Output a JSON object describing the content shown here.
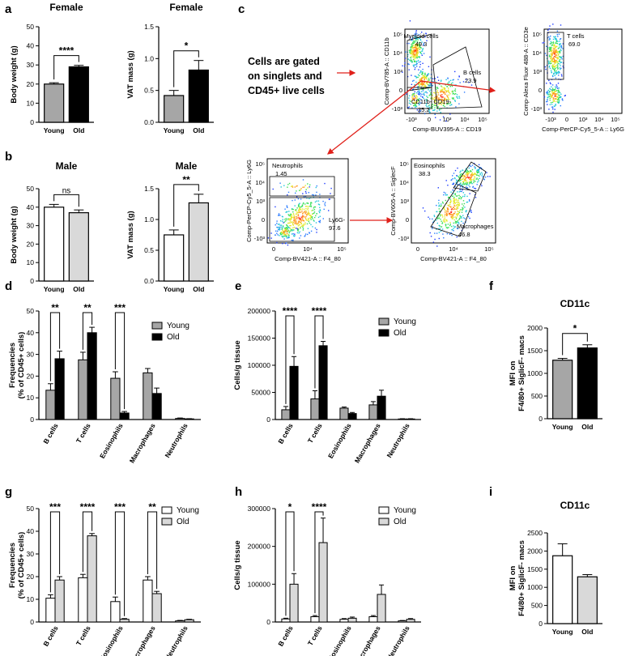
{
  "panel_labels": [
    "a",
    "b",
    "c",
    "d",
    "e",
    "f",
    "g",
    "h",
    "i"
  ],
  "gating": {
    "note_lines": [
      "Cells are gated",
      "on singlets and",
      "CD45+ live cells"
    ],
    "plots": [
      {
        "xlabel": "Comp-BUV395-A :: CD19",
        "ylabel": "Comp-BV785-A :: CD11b",
        "xticks": [
          "-10³",
          "0",
          "10³",
          "10⁴",
          "10⁵"
        ],
        "yticks": [
          "-10³",
          "0",
          "10³",
          "10⁴",
          "10⁵"
        ],
        "gates": [
          {
            "label": "Myeloid cells",
            "value": "49.3"
          },
          {
            "label": "B cells",
            "value": "23.9"
          },
          {
            "label": "CD11b- CD19-",
            "value": "25.2"
          }
        ]
      },
      {
        "xlabel": "Comp-PerCP-Cy5_5-A :: Ly6G",
        "ylabel": "Comp-Alexa Fluor 488-A :: CD3e",
        "xticks": [
          "-10³",
          "0",
          "10³",
          "10⁴",
          "10⁵"
        ],
        "yticks": [
          "-10³",
          "0",
          "10³",
          "10⁴",
          "10⁵"
        ],
        "gates": [
          {
            "label": "T cells",
            "value": "69.0"
          }
        ]
      },
      {
        "xlabel": "Comp-BV421-A :: F4_80",
        "ylabel": "Comp-PerCP-Cy5_5-A :: Ly6G",
        "xticks": [
          "0",
          "10⁴",
          "10⁵"
        ],
        "yticks": [
          "-10³",
          "0",
          "10³",
          "10⁴",
          "10⁵"
        ],
        "gates": [
          {
            "label": "Neutrophils",
            "value": "1.45"
          },
          {
            "label": "Ly6G-",
            "value": "97.6"
          }
        ]
      },
      {
        "xlabel": "Comp-BV421-A :: F4_80",
        "ylabel": "Comp-BV605-A :: SiglecF",
        "xticks": [
          "0",
          "10⁴",
          "10⁵"
        ],
        "yticks": [
          "-10³",
          "0",
          "10³",
          "10⁴",
          "10⁵"
        ],
        "gates": [
          {
            "label": "Eosinophils",
            "value": "38.3"
          },
          {
            "label": "Macrophages",
            "value": "46.8"
          }
        ]
      }
    ]
  },
  "chart_data": [
    {
      "id": "a1",
      "type": "bar",
      "title": "Female",
      "ylabel": "Body weight (g)",
      "ylim": [
        0,
        50
      ],
      "yticks": [
        0,
        10,
        20,
        30,
        40,
        50
      ],
      "categories": [
        "Young",
        "Old"
      ],
      "values": [
        20,
        29
      ],
      "errors": [
        0.7,
        0.8
      ],
      "colors": [
        "#a6a6a6",
        "#000000"
      ],
      "annotations": [
        {
          "from": 0,
          "to": 1,
          "text": "****"
        }
      ]
    },
    {
      "id": "a2",
      "type": "bar",
      "title": "Female",
      "ylabel": "VAT mass (g)",
      "ylim": [
        0,
        1.5
      ],
      "yticks": [
        "0.0",
        "0.5",
        "1.0",
        "1.5"
      ],
      "categories": [
        "Young",
        "Old"
      ],
      "values": [
        0.42,
        0.82
      ],
      "errors": [
        0.08,
        0.15
      ],
      "colors": [
        "#a6a6a6",
        "#000000"
      ],
      "annotations": [
        {
          "from": 0,
          "to": 1,
          "text": "*"
        }
      ]
    },
    {
      "id": "b1",
      "type": "bar",
      "title": "Male",
      "ylabel": "Body weight (g)",
      "ylim": [
        0,
        50
      ],
      "yticks": [
        0,
        10,
        20,
        30,
        40,
        50
      ],
      "categories": [
        "Young",
        "Old"
      ],
      "values": [
        40,
        37
      ],
      "errors": [
        1.5,
        1.5
      ],
      "colors": [
        "#ffffff",
        "#d9d9d9"
      ],
      "annotations": [
        {
          "from": 0,
          "to": 1,
          "text": "ns"
        }
      ]
    },
    {
      "id": "b2",
      "type": "bar",
      "title": "Male",
      "ylabel": "VAT mass (g)",
      "ylim": [
        0,
        1.5
      ],
      "yticks": [
        "0.0",
        "0.5",
        "1.0",
        "1.5"
      ],
      "categories": [
        "Young",
        "Old"
      ],
      "values": [
        0.75,
        1.27
      ],
      "errors": [
        0.08,
        0.14
      ],
      "colors": [
        "#ffffff",
        "#d9d9d9"
      ],
      "annotations": [
        {
          "from": 0,
          "to": 1,
          "text": "**"
        }
      ]
    },
    {
      "id": "d",
      "type": "bar",
      "ylabel": "Frequencies (% of CD45+ cells)",
      "ylim": [
        0,
        50
      ],
      "yticks": [
        0,
        10,
        20,
        30,
        40,
        50
      ],
      "categories": [
        "B cells",
        "T cells",
        "Eosinophils",
        "Macrophages",
        "Neutrophils"
      ],
      "series": [
        {
          "name": "Young",
          "color": "#a6a6a6",
          "values": [
            13.5,
            27.5,
            19,
            21.5,
            0.5
          ],
          "errors": [
            3,
            3.5,
            3,
            2,
            0.2
          ]
        },
        {
          "name": "Old",
          "color": "#000000",
          "values": [
            28,
            40,
            3,
            12,
            0.3
          ],
          "errors": [
            3.5,
            2.5,
            0.7,
            2.5,
            0.1
          ]
        }
      ],
      "annotations": [
        {
          "group": 0,
          "text": "**"
        },
        {
          "group": 1,
          "text": "**"
        },
        {
          "group": 2,
          "text": "***"
        }
      ]
    },
    {
      "id": "e",
      "type": "bar",
      "ylabel": "Cells/g tissue",
      "ylim": [
        0,
        200000
      ],
      "yticks": [
        0,
        50000,
        100000,
        150000,
        200000
      ],
      "categories": [
        "B cells",
        "T cells",
        "Eosinophils",
        "Macrophages",
        "Neutrophils"
      ],
      "series": [
        {
          "name": "Young",
          "color": "#a6a6a6",
          "values": [
            18000,
            38000,
            21000,
            27000,
            1000
          ],
          "errors": [
            6000,
            15000,
            2000,
            6000,
            500
          ]
        },
        {
          "name": "Old",
          "color": "#000000",
          "values": [
            98000,
            136000,
            11000,
            43000,
            1000
          ],
          "errors": [
            18000,
            8000,
            2000,
            11000,
            500
          ]
        }
      ],
      "annotations": [
        {
          "group": 0,
          "text": "****"
        },
        {
          "group": 1,
          "text": "****"
        }
      ]
    },
    {
      "id": "f",
      "type": "bar",
      "title": "CD11c",
      "ylabel": "MFI on F4/80+ SiglicF- macs",
      "ylim": [
        0,
        2000
      ],
      "yticks": [
        0,
        500,
        1000,
        1500,
        2000
      ],
      "categories": [
        "Young",
        "Old"
      ],
      "values": [
        1290,
        1560
      ],
      "errors": [
        40,
        70
      ],
      "colors": [
        "#a6a6a6",
        "#000000"
      ],
      "annotations": [
        {
          "from": 0,
          "to": 1,
          "text": "*"
        }
      ]
    },
    {
      "id": "g",
      "type": "bar",
      "ylabel": "Frequencies (% of CD45+ cells)",
      "ylim": [
        0,
        50
      ],
      "yticks": [
        0,
        10,
        20,
        30,
        40,
        50
      ],
      "categories": [
        "B cells",
        "T cells",
        "Eosinophils",
        "Macrophages",
        "Neutrophils"
      ],
      "series": [
        {
          "name": "Young",
          "color": "#ffffff",
          "values": [
            10.5,
            19.5,
            9,
            18.5,
            0.5
          ],
          "errors": [
            1.5,
            1.5,
            2,
            1.5,
            0.2
          ]
        },
        {
          "name": "Old",
          "color": "#d9d9d9",
          "values": [
            18.5,
            38,
            1.2,
            12.5,
            1
          ]
        },
        {
          "name": "Old",
          "color": "#d9d9d9",
          "values": [
            18.5,
            38,
            1.2,
            12.5,
            1
          ],
          "errors": [
            1.5,
            1,
            0.3,
            1,
            0.2
          ]
        }
      ],
      "annotations": [
        {
          "group": 0,
          "text": "***"
        },
        {
          "group": 1,
          "text": "****"
        },
        {
          "group": 2,
          "text": "***"
        },
        {
          "group": 3,
          "text": "**"
        }
      ]
    },
    {
      "id": "h",
      "type": "bar",
      "ylabel": "Cells/g tissue",
      "ylim": [
        0,
        300000
      ],
      "yticks": [
        0,
        100000,
        200000,
        300000
      ],
      "categories": [
        "B cells",
        "T cells",
        "Eosinophils",
        "Macrophages",
        "Neutrophils"
      ],
      "series": [
        {
          "name": "Young",
          "color": "#ffffff",
          "values": [
            8000,
            14000,
            7000,
            14000,
            3000
          ],
          "errors": [
            2000,
            3000,
            2000,
            3000,
            1000
          ]
        },
        {
          "name": "Old",
          "color": "#d9d9d9",
          "values": [
            100000,
            210000,
            10000,
            73000,
            7000
          ],
          "errors": [
            28000,
            65000,
            3000,
            25000,
            2000
          ]
        }
      ],
      "annotations": [
        {
          "group": 0,
          "text": "*"
        },
        {
          "group": 1,
          "text": "****"
        }
      ]
    },
    {
      "id": "i",
      "type": "bar",
      "title": "CD11c",
      "ylabel": "MFI on F4/80+ SiglicF- macs",
      "ylim": [
        0,
        2500
      ],
      "yticks": [
        0,
        500,
        1000,
        1500,
        2000,
        2500
      ],
      "categories": [
        "Young",
        "Old"
      ],
      "values": [
        1870,
        1290
      ],
      "errors": [
        330,
        60
      ],
      "colors": [
        "#ffffff",
        "#d9d9d9"
      ],
      "annotations": []
    }
  ]
}
